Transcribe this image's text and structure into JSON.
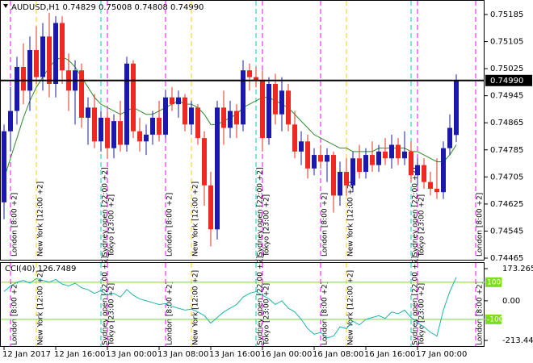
{
  "chart_data": {
    "type": "candlestick",
    "title": "AUDUSD,H1  0.74829 0.75008 0.74808 0.74990",
    "categories": [
      "12 Jan 2017",
      null,
      null,
      null,
      null,
      null,
      null,
      null,
      "12 Jan 16:00",
      null,
      null,
      null,
      null,
      null,
      null,
      null,
      "13 Jan 00:00",
      null,
      null,
      null,
      null,
      null,
      null,
      null,
      "13 Jan 08:00",
      null,
      null,
      null,
      null,
      null,
      null,
      null,
      "13 Jan 16:00",
      null,
      null,
      null,
      null,
      null,
      null,
      null,
      "16 Jan 00:00",
      null,
      null,
      null,
      null,
      null,
      null,
      null,
      "16 Jan 08:00",
      null,
      null,
      null,
      null,
      null,
      null,
      null,
      "16 Jan 16:00",
      null,
      null,
      null,
      null,
      null,
      null,
      null,
      "17 Jan 00:00",
      null,
      null,
      null,
      null,
      null,
      null
    ],
    "open": [
      0.7463,
      0.7484,
      0.749,
      0.7503,
      0.7496,
      0.7508,
      0.75,
      0.7512,
      0.7498,
      0.7516,
      0.7502,
      0.7496,
      0.7502,
      0.7488,
      0.7491,
      0.7481,
      0.7488,
      0.7479,
      0.7487,
      0.748,
      0.7504,
      0.7484,
      0.7481,
      0.7483,
      0.7488,
      0.7483,
      0.7494,
      0.7492,
      0.7494,
      0.7486,
      0.7491,
      0.7482,
      0.7468,
      0.7455,
      0.7491,
      0.7485,
      0.749,
      0.7486,
      0.7502,
      0.75,
      0.7499,
      0.7482,
      0.7498,
      0.7489,
      0.7496,
      0.7486,
      0.7478,
      0.7481,
      0.7473,
      0.7477,
      0.7475,
      0.7477,
      0.7465,
      0.7472,
      0.7468,
      0.7476,
      0.7472,
      0.7477,
      0.7474,
      0.7478,
      0.7476,
      0.748,
      0.7476,
      0.7478,
      0.7471,
      0.7474,
      0.7469,
      0.7467,
      0.7466,
      0.7479,
      0.74829
    ],
    "high": [
      0.7486,
      0.7497,
      0.7506,
      0.751,
      0.7512,
      0.7515,
      0.7516,
      0.7519,
      0.7518,
      0.7518,
      0.7507,
      0.7505,
      0.7504,
      0.7494,
      0.7495,
      0.749,
      0.749,
      0.7489,
      0.7493,
      0.7506,
      0.7505,
      0.7488,
      0.7486,
      0.749,
      0.7493,
      0.7496,
      0.7497,
      0.7496,
      0.7495,
      0.7493,
      0.7492,
      0.7484,
      0.7472,
      0.7493,
      0.7496,
      0.7493,
      0.7492,
      0.7505,
      0.7504,
      0.7503,
      0.7502,
      0.75,
      0.7501,
      0.75,
      0.7498,
      0.749,
      0.7484,
      0.7483,
      0.7479,
      0.748,
      0.7479,
      0.7478,
      0.7475,
      0.7476,
      0.7478,
      0.748,
      0.7479,
      0.7481,
      0.748,
      0.7482,
      0.7483,
      0.7482,
      0.7484,
      0.7481,
      0.7476,
      0.7476,
      0.7472,
      0.7476,
      0.7481,
      0.7489,
      0.75008
    ],
    "low": [
      0.7458,
      0.7478,
      0.7486,
      0.7492,
      0.749,
      0.7498,
      0.7496,
      0.7494,
      0.7494,
      0.7498,
      0.749,
      0.7486,
      0.7485,
      0.748,
      0.7479,
      0.7478,
      0.7476,
      0.7476,
      0.7478,
      0.7478,
      0.7482,
      0.7478,
      0.7477,
      0.748,
      0.7481,
      0.7482,
      0.749,
      0.7488,
      0.7484,
      0.7483,
      0.748,
      0.7462,
      0.745,
      0.7452,
      0.748,
      0.7482,
      0.7482,
      0.7484,
      0.7496,
      0.7497,
      0.7478,
      0.748,
      0.7486,
      0.7484,
      0.7484,
      0.7476,
      0.7474,
      0.747,
      0.7471,
      0.7473,
      0.7469,
      0.746,
      0.7462,
      0.7465,
      0.7466,
      0.747,
      0.747,
      0.7472,
      0.7472,
      0.7474,
      0.7473,
      0.7474,
      0.7474,
      0.7469,
      0.7468,
      0.7467,
      0.7465,
      0.7464,
      0.7464,
      0.7477,
      0.74808
    ],
    "close": [
      0.7484,
      0.749,
      0.7503,
      0.7496,
      0.7508,
      0.75,
      0.7512,
      0.7498,
      0.7516,
      0.7502,
      0.7496,
      0.7502,
      0.7488,
      0.7491,
      0.7481,
      0.7488,
      0.7479,
      0.7487,
      0.748,
      0.7504,
      0.7484,
      0.7481,
      0.7483,
      0.7488,
      0.7483,
      0.7494,
      0.7492,
      0.7494,
      0.7486,
      0.7491,
      0.7482,
      0.7468,
      0.7455,
      0.7491,
      0.7485,
      0.749,
      0.7486,
      0.7502,
      0.75,
      0.7499,
      0.7482,
      0.7498,
      0.7489,
      0.7496,
      0.7486,
      0.7478,
      0.7481,
      0.7473,
      0.7477,
      0.7475,
      0.7477,
      0.7465,
      0.7472,
      0.7468,
      0.7476,
      0.7472,
      0.7477,
      0.7474,
      0.7478,
      0.7476,
      0.748,
      0.7476,
      0.7478,
      0.7471,
      0.7474,
      0.7469,
      0.7467,
      0.7466,
      0.7479,
      0.7485,
      0.7499
    ],
    "up_color": "#1a1aa6",
    "down_color": "#ee2a1c",
    "ylim": [
      0.74465,
      0.75185
    ],
    "yticks": [
      0.75185,
      0.75105,
      0.75025,
      0.74945,
      0.74865,
      0.74785,
      0.74705,
      0.74625,
      0.74545,
      0.74465
    ],
    "last_price": {
      "value": 0.7499,
      "label": "0.74990"
    },
    "ma": {
      "color": "#2e8b2e",
      "values": [
        0.747,
        0.7476,
        0.7482,
        0.7488,
        0.7493,
        0.7497,
        0.75,
        0.7503,
        0.7505,
        0.7506,
        0.7505,
        0.7503,
        0.75,
        0.7497,
        0.7494,
        0.7492,
        0.7491,
        0.749,
        0.7489,
        0.749,
        0.7491,
        0.749,
        0.7489,
        0.7489,
        0.749,
        0.7491,
        0.7492,
        0.7493,
        0.7492,
        0.7492,
        0.7491,
        0.7489,
        0.7486,
        0.7486,
        0.7487,
        0.7488,
        0.7489,
        0.7491,
        0.7492,
        0.7493,
        0.7494,
        0.7494,
        0.7493,
        0.7492,
        0.7491,
        0.7489,
        0.7487,
        0.7485,
        0.7483,
        0.7482,
        0.7481,
        0.748,
        0.7479,
        0.7479,
        0.7478,
        0.7478,
        0.7478,
        0.7478,
        0.7479,
        0.7479,
        0.7479,
        0.7479,
        0.7479,
        0.7478,
        0.7478,
        0.7477,
        0.7476,
        0.7475,
        0.7475,
        0.7477,
        0.748
      ]
    },
    "sessions": [
      {
        "label": "London [8:00 +2]",
        "at": 1,
        "color": "#ff00ff"
      },
      {
        "label": "New York [12:00 +2]",
        "at": 5,
        "color": "#ffcc00"
      },
      {
        "label": "Sydney open [22:00 +2]",
        "at": 15,
        "color": "#00c8c8"
      },
      {
        "label": "Tokyo [23:00 +2]",
        "at": 16,
        "color": "#ff00ff"
      },
      {
        "label": "London [8:00 +2]",
        "at": 25,
        "color": "#ff00ff"
      },
      {
        "label": "New York [12:00 +2]",
        "at": 29,
        "color": "#ffcc00"
      },
      {
        "label": "Sydney open [22:00 +2]",
        "at": 39,
        "color": "#00c8c8"
      },
      {
        "label": "Tokyo [23:00 +2]",
        "at": 40,
        "color": "#ff00ff"
      },
      {
        "label": "London [8:00 +2]",
        "at": 49,
        "color": "#ff00ff"
      },
      {
        "label": "New York [12:00 +2]",
        "at": 53,
        "color": "#ffcc00"
      },
      {
        "label": "Sydney open [22:00 +2]",
        "at": 63,
        "color": "#00c8c8"
      },
      {
        "label": "Tokyo [23:00 +2]",
        "at": 64,
        "color": "#ff00ff"
      },
      {
        "label": "London [8:00 +2]",
        "at": 73,
        "color": "#ff00ff"
      }
    ],
    "indicator": {
      "title": "CCI(40) 126.7489",
      "color": "#20b2aa",
      "values": [
        50,
        80,
        100,
        110,
        95,
        120,
        110,
        100,
        115,
        90,
        80,
        95,
        70,
        60,
        40,
        55,
        30,
        40,
        20,
        60,
        30,
        10,
        0,
        -10,
        -20,
        -15,
        -30,
        -40,
        -50,
        -45,
        -60,
        -80,
        -120,
        -90,
        -60,
        -40,
        -20,
        20,
        40,
        50,
        30,
        10,
        -20,
        0,
        -40,
        -60,
        -100,
        -150,
        -180,
        -170,
        -200,
        -190,
        -140,
        -150,
        -110,
        -130,
        -100,
        -90,
        -80,
        -95,
        -60,
        -70,
        -50,
        -90,
        -120,
        -140,
        -170,
        -190,
        -50,
        50,
        126.7489
      ],
      "ylim": [
        -213.4405,
        173.2653
      ],
      "yticks": [
        173.2653,
        {
          "value": 0,
          "label": "0.00"
        },
        -213.4405
      ],
      "levels": [
        100,
        -100
      ],
      "level_color": "#7cdc1e"
    }
  }
}
